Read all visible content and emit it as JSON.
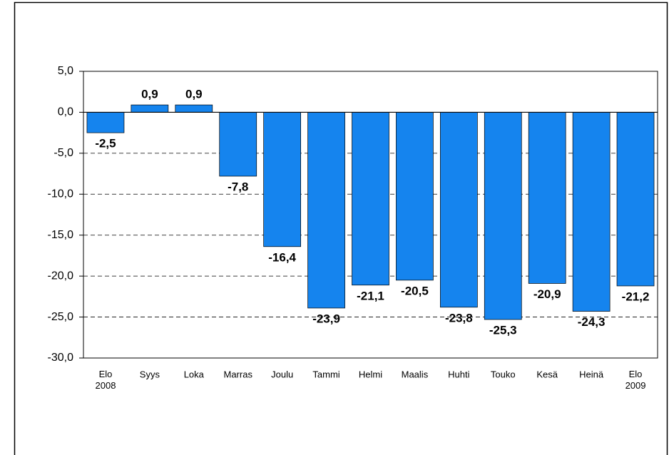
{
  "chart_data": {
    "type": "bar",
    "categories": [
      "Elo\n2008",
      "Syys",
      "Loka",
      "Marras",
      "Joulu",
      "Tammi",
      "Helmi",
      "Maalis",
      "Huhti",
      "Touko",
      "Kesä",
      "Heinä",
      "Elo\n2009"
    ],
    "values": [
      -2.5,
      0.9,
      0.9,
      -7.8,
      -16.4,
      -23.9,
      -21.1,
      -20.5,
      -23.8,
      -25.3,
      -20.9,
      -24.3,
      -21.2
    ],
    "value_labels": [
      "-2,5",
      "0,9",
      "0,9",
      "-7,8",
      "-16,4",
      "-23,9",
      "-21,1",
      "-20,5",
      "-23,8",
      "-25,3",
      "-20,9",
      "-24,3",
      "-21,2"
    ],
    "color": "#1584ee",
    "ylim": [
      -30,
      5
    ],
    "yticks": [
      {
        "value": -30,
        "label": "-30,0"
      },
      {
        "value": -25,
        "label": "-25,0"
      },
      {
        "value": -20,
        "label": "-20,0"
      },
      {
        "value": -15,
        "label": "-15,0"
      },
      {
        "value": -10,
        "label": "-10,0"
      },
      {
        "value": -5,
        "label": "-5,0"
      },
      {
        "value": 0,
        "label": "0,0"
      },
      {
        "value": 5,
        "label": "5,0"
      }
    ],
    "grid": true
  }
}
